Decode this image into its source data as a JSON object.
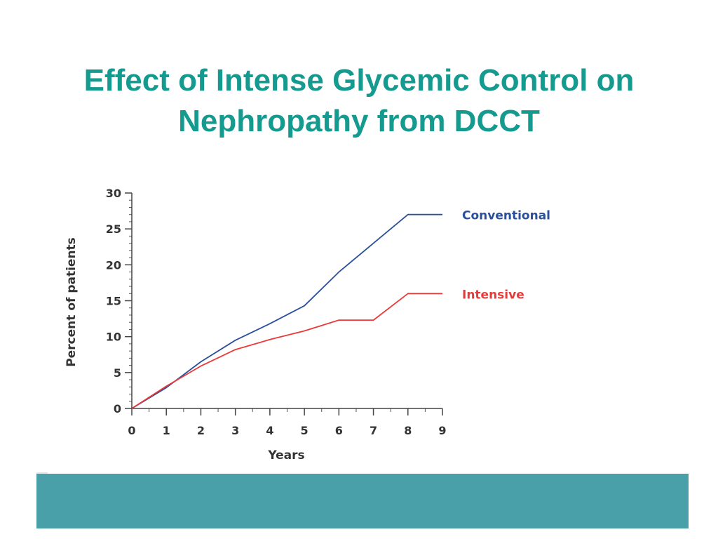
{
  "slide": {
    "title_line1": "Effect of Intense Glycemic Control on",
    "title_line2": "Nephropathy from DCCT",
    "title_color": "#159a8f",
    "footer_color": "#4aa0a8"
  },
  "chart_data": {
    "type": "line",
    "title": "",
    "xlabel": "Years",
    "ylabel": "Percent of patients",
    "xlim": [
      0,
      9
    ],
    "ylim": [
      0,
      30
    ],
    "xticks": [
      0,
      1,
      2,
      3,
      4,
      5,
      6,
      7,
      8,
      9
    ],
    "yticks": [
      0,
      5,
      10,
      15,
      20,
      25,
      30
    ],
    "grid": false,
    "legend": "inline-right",
    "series": [
      {
        "name": "Conventional",
        "color": "#2a4f9b",
        "x": [
          0,
          1,
          2,
          3,
          4,
          5,
          6,
          7,
          8,
          9
        ],
        "y": [
          0,
          2.9,
          6.5,
          9.5,
          11.8,
          14.3,
          19,
          23,
          27,
          27
        ]
      },
      {
        "name": "Intensive",
        "color": "#e83a3a",
        "x": [
          0,
          1,
          2,
          3,
          4,
          5,
          6,
          7,
          8,
          9
        ],
        "y": [
          0,
          3.1,
          5.9,
          8.2,
          9.6,
          10.8,
          12.3,
          12.3,
          16,
          16
        ]
      }
    ]
  }
}
